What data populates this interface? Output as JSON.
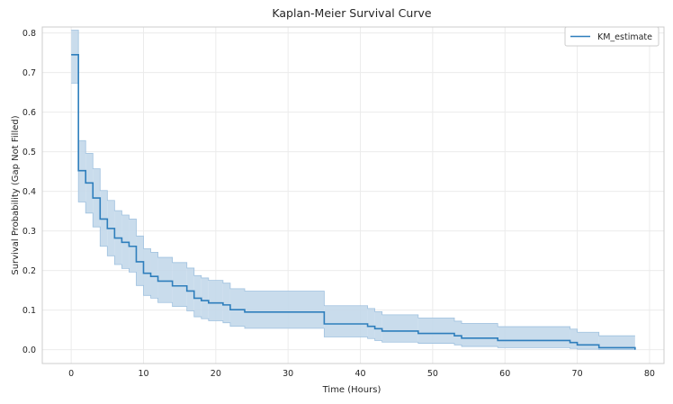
{
  "chart_data": {
    "type": "line",
    "title": "Kaplan-Meier Survival Curve",
    "xlabel": "Time (Hours)",
    "ylabel": "Survival Probability (Gap Not Filled)",
    "xlim": [
      -4,
      82
    ],
    "ylim": [
      -0.035,
      0.815
    ],
    "xticks": [
      0,
      10,
      20,
      30,
      40,
      50,
      60,
      70,
      80
    ],
    "yticks": [
      0.0,
      0.1,
      0.2,
      0.3,
      0.4,
      0.5,
      0.6,
      0.7,
      0.8
    ],
    "xtick_labels": [
      "0",
      "10",
      "20",
      "30",
      "40",
      "50",
      "60",
      "70",
      "80"
    ],
    "ytick_labels": [
      "0.0",
      "0.1",
      "0.2",
      "0.3",
      "0.4",
      "0.5",
      "0.6",
      "0.7",
      "0.8"
    ],
    "grid": true,
    "legend": {
      "position": "top-right",
      "entries": [
        "KM_estimate"
      ]
    },
    "series": [
      {
        "name": "KM_estimate",
        "color": "#2e7ebc",
        "ci_color": "#c3d8ea",
        "x": [
          0,
          1,
          2,
          3,
          4,
          5,
          6,
          7,
          8,
          9,
          10,
          11,
          12,
          14,
          16,
          17,
          18,
          19,
          21,
          22,
          24,
          35,
          41,
          42,
          43,
          48,
          53,
          54,
          59,
          69,
          70,
          73,
          78
        ],
        "y": [
          0.745,
          0.452,
          0.421,
          0.383,
          0.33,
          0.306,
          0.282,
          0.271,
          0.261,
          0.222,
          0.193,
          0.185,
          0.173,
          0.161,
          0.148,
          0.13,
          0.124,
          0.118,
          0.113,
          0.101,
          0.095,
          0.065,
          0.059,
          0.053,
          0.047,
          0.041,
          0.035,
          0.029,
          0.023,
          0.018,
          0.012,
          0.005,
          0.0
        ],
        "ci_lower": [
          0.673,
          0.373,
          0.345,
          0.31,
          0.261,
          0.237,
          0.215,
          0.205,
          0.196,
          0.162,
          0.137,
          0.13,
          0.119,
          0.109,
          0.098,
          0.083,
          0.078,
          0.073,
          0.068,
          0.059,
          0.054,
          0.032,
          0.028,
          0.023,
          0.019,
          0.016,
          0.012,
          0.008,
          0.005,
          0.003,
          0.001,
          0.0,
          0.0
        ],
        "ci_upper": [
          0.807,
          0.528,
          0.496,
          0.457,
          0.402,
          0.377,
          0.351,
          0.34,
          0.33,
          0.287,
          0.255,
          0.246,
          0.233,
          0.22,
          0.206,
          0.187,
          0.181,
          0.175,
          0.168,
          0.154,
          0.148,
          0.111,
          0.104,
          0.096,
          0.088,
          0.08,
          0.072,
          0.066,
          0.058,
          0.052,
          0.044,
          0.035,
          0.025
        ]
      }
    ]
  }
}
